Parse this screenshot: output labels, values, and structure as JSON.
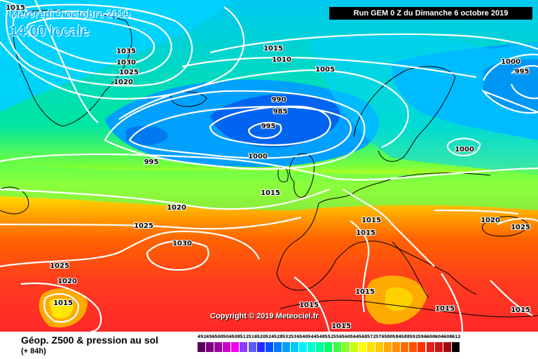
{
  "header": {
    "date_title": "Mercredi 9 octobre 2019",
    "time_title": "14:00 locale",
    "run_banner": "Run GEM 0 Z du Dimanche 6 octobre 2019"
  },
  "copyright": "Copyright © 2019 Meteociel.fr",
  "footer": {
    "product_title": "Géop. Z500 & pression au sol",
    "forecast_hour": "(+ 84h)"
  },
  "legend": {
    "values": [
      "492",
      "496",
      "500",
      "504",
      "508",
      "512",
      "516",
      "520",
      "524",
      "528",
      "532",
      "536",
      "540",
      "544",
      "548",
      "552",
      "556",
      "560",
      "564",
      "568",
      "572",
      "576",
      "580",
      "584",
      "588",
      "592",
      "596",
      "600",
      "604",
      "608",
      "612"
    ],
    "colors": [
      "#5a005a",
      "#7d007d",
      "#a000a0",
      "#c800c8",
      "#f000f0",
      "#8c3cff",
      "#5a5aff",
      "#2828ff",
      "#0050ff",
      "#0078ff",
      "#00a0ff",
      "#00c8ff",
      "#00f0ff",
      "#00ffd2",
      "#00ffa0",
      "#00ff64",
      "#3cff3c",
      "#82ff28",
      "#c8ff14",
      "#ffff00",
      "#ffe100",
      "#ffc800",
      "#ffaa00",
      "#ff8c00",
      "#ff6e00",
      "#ff5000",
      "#ff3200",
      "#e61e1e",
      "#c81414",
      "#a00a0a",
      "#000000"
    ]
  },
  "isobar_labels": [
    "1015",
    "1035",
    "1030",
    "1025",
    "1020",
    "1015",
    "1010",
    "1005",
    "1000",
    "995",
    "995",
    "990",
    "985",
    "995",
    "1000",
    "1000",
    "1015",
    "1020",
    "1025",
    "1030",
    "1025",
    "1020",
    "1015",
    "1015",
    "1015",
    "1015",
    "1015",
    "1015",
    "1015",
    "1020",
    "1025",
    "1015"
  ],
  "palette": {
    "title_blue": "#00b4ff",
    "isobar": "#ffffff",
    "coast": "#000000"
  }
}
